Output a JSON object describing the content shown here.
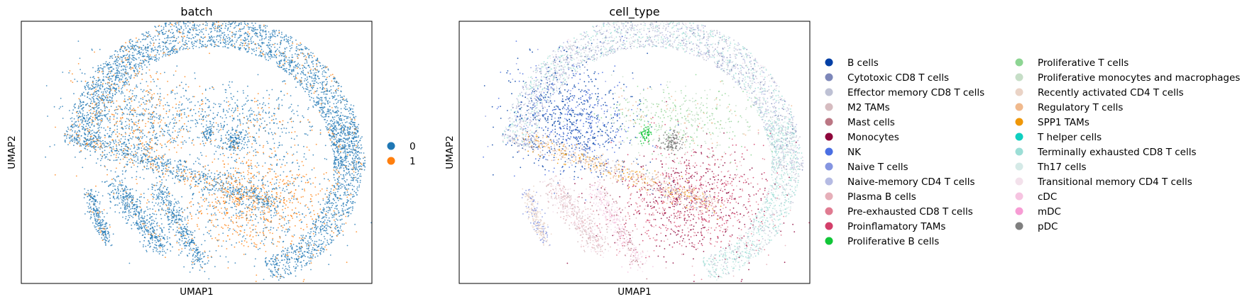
{
  "chart_data": [
    {
      "type": "scatter",
      "title": "batch",
      "xlabel": "UMAP1",
      "ylabel": "UMAP2",
      "grid": false,
      "legend_position": "right",
      "legend": [
        {
          "label": "0",
          "color": "#1f77b4"
        },
        {
          "label": "1",
          "color": "#ff7f0e"
        }
      ]
    },
    {
      "type": "scatter",
      "title": "cell_type",
      "xlabel": "UMAP1",
      "ylabel": "UMAP2",
      "grid": false,
      "legend_position": "right",
      "legend_columns": [
        [
          {
            "label": "B cells",
            "color": "#023fa5"
          },
          {
            "label": "Cytotoxic CD8 T cells",
            "color": "#7d87b9"
          },
          {
            "label": "Effector memory CD8 T cells",
            "color": "#bec1d4"
          },
          {
            "label": "M2 TAMs",
            "color": "#d6bcc0"
          },
          {
            "label": "Mast cells",
            "color": "#bb7784"
          },
          {
            "label": "Monocytes",
            "color": "#8e063b"
          },
          {
            "label": "NK",
            "color": "#4a6fe3"
          },
          {
            "label": "Naive T cells",
            "color": "#8595e1"
          },
          {
            "label": "Naive-memory CD4 T cells",
            "color": "#b5bbe3"
          },
          {
            "label": "Plasma B cells",
            "color": "#e6afb9"
          },
          {
            "label": "Pre-exhausted CD8 T cells",
            "color": "#e07b91"
          },
          {
            "label": "Proinflamatory TAMs",
            "color": "#d33f6a"
          },
          {
            "label": "Proliferative B cells",
            "color": "#11c638"
          }
        ],
        [
          {
            "label": "Proliferative T cells",
            "color": "#8dd593"
          },
          {
            "label": "Proliferative monocytes and macrophages",
            "color": "#c6dec7"
          },
          {
            "label": "Recently activated CD4 T cells",
            "color": "#ead3c6"
          },
          {
            "label": "Regulatory T cells",
            "color": "#f0b98d"
          },
          {
            "label": "SPP1 TAMs",
            "color": "#ef9708"
          },
          {
            "label": "T helper cells",
            "color": "#0fcfc0"
          },
          {
            "label": "Terminally exhausted CD8 T cells",
            "color": "#9cded6"
          },
          {
            "label": "Th17 cells",
            "color": "#d5eae7"
          },
          {
            "label": "Transitional memory CD4 T cells",
            "color": "#f3e1eb"
          },
          {
            "label": "cDC",
            "color": "#f6c4e1"
          },
          {
            "label": "mDC",
            "color": "#f79cd4"
          },
          {
            "label": "pDC",
            "color": "#7f7f7f"
          }
        ]
      ]
    }
  ]
}
